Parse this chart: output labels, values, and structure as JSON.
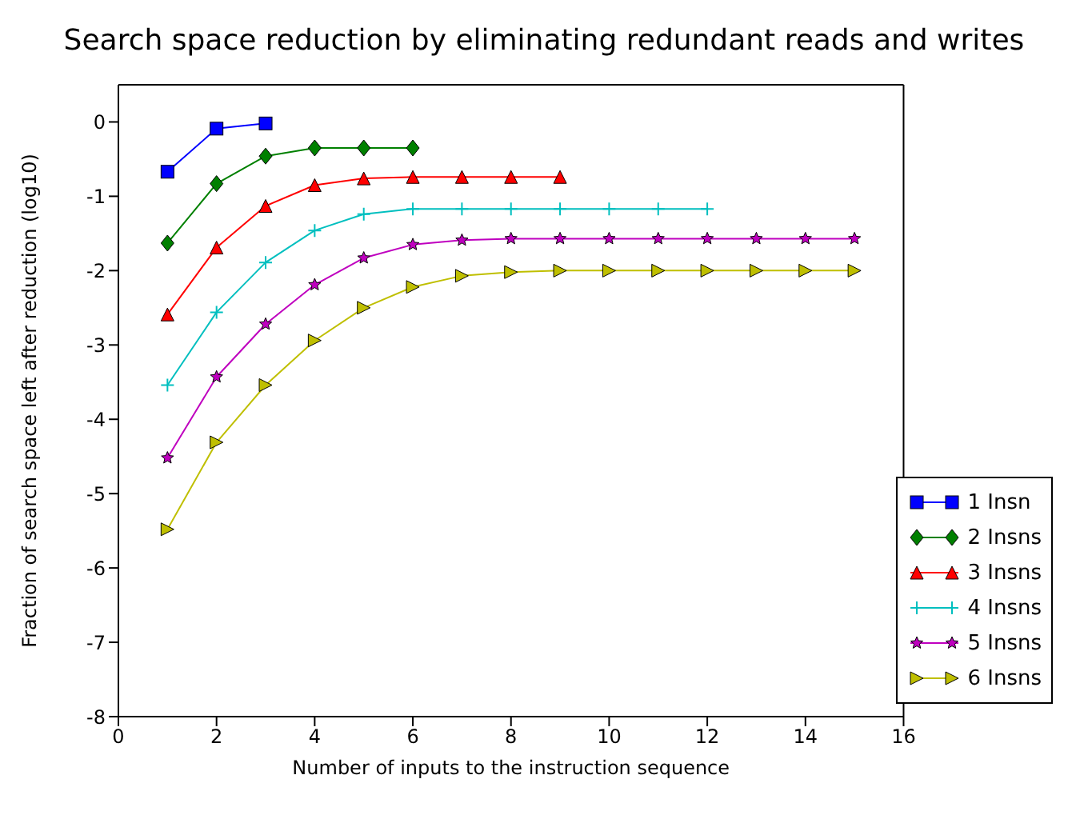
{
  "chart_data": {
    "type": "line",
    "title": "Search space reduction by eliminating redundant reads and writes",
    "xlabel": "Number of inputs to the instruction sequence",
    "ylabel": "Fraction of search space left after reduction (log10)",
    "xlim": [
      0,
      16
    ],
    "xticks": [
      0,
      2,
      4,
      6,
      8,
      10,
      12,
      14,
      16
    ],
    "ylim": [
      -8,
      0.5
    ],
    "yticks": [
      -8,
      -7,
      -6,
      -5,
      -4,
      -3,
      -2,
      -1,
      0
    ],
    "grid": false,
    "legend": "bottom right",
    "series": [
      {
        "name": "1 Insn",
        "color": "#0000ff",
        "marker": "square",
        "x": [
          1,
          2,
          3
        ],
        "values": [
          -0.67,
          -0.09,
          -0.02
        ]
      },
      {
        "name": "2 Insns",
        "color": "#008000",
        "marker": "diamond",
        "x": [
          1,
          2,
          3,
          4,
          5,
          6
        ],
        "values": [
          -1.63,
          -0.83,
          -0.46,
          -0.35,
          -0.35,
          -0.35
        ]
      },
      {
        "name": "3 Insns",
        "color": "#ff0000",
        "marker": "triangle",
        "x": [
          1,
          2,
          3,
          4,
          5,
          6,
          7,
          8,
          9
        ],
        "values": [
          -2.59,
          -1.69,
          -1.13,
          -0.85,
          -0.76,
          -0.74,
          -0.74,
          -0.74,
          -0.74
        ]
      },
      {
        "name": "4 Insns",
        "color": "#00bfbf",
        "marker": "cross",
        "x": [
          1,
          2,
          3,
          4,
          5,
          6,
          7,
          8,
          9,
          10,
          11,
          12
        ],
        "values": [
          -3.54,
          -2.56,
          -1.89,
          -1.46,
          -1.24,
          -1.17,
          -1.17,
          -1.17,
          -1.17,
          -1.17,
          -1.17,
          -1.17
        ]
      },
      {
        "name": "5 Insns",
        "color": "#bf00bf",
        "marker": "star",
        "x": [
          1,
          2,
          3,
          4,
          5,
          6,
          7,
          8,
          9,
          10,
          11,
          12,
          13,
          14,
          15
        ],
        "values": [
          -4.52,
          -3.43,
          -2.72,
          -2.19,
          -1.83,
          -1.65,
          -1.59,
          -1.57,
          -1.57,
          -1.57,
          -1.57,
          -1.57,
          -1.57,
          -1.57,
          -1.57
        ]
      },
      {
        "name": "6 Insns",
        "color": "#bfbf00",
        "marker": "triangle-right",
        "x": [
          1,
          2,
          3,
          4,
          5,
          6,
          7,
          8,
          9,
          10,
          11,
          12,
          13,
          14,
          15
        ],
        "values": [
          -5.48,
          -4.31,
          -3.54,
          -2.94,
          -2.5,
          -2.22,
          -2.07,
          -2.02,
          -2.0,
          -2.0,
          -2.0,
          -2.0,
          -2.0,
          -2.0,
          -2.0
        ]
      }
    ]
  }
}
